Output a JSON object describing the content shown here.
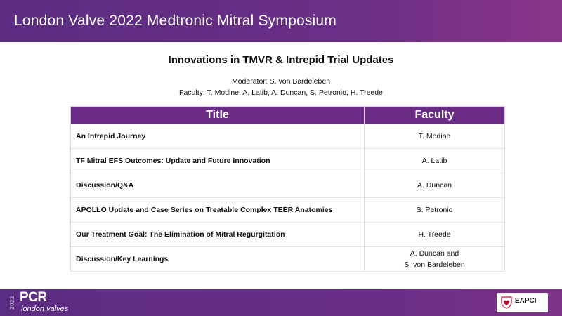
{
  "header": {
    "title": "London Valve 2022 Medtronic Mitral Symposium"
  },
  "session": {
    "title": "Innovations in TMVR & Intrepid Trial Updates",
    "moderator": "Moderator: S. von Bardeleben",
    "faculty": "Faculty: T. Modine, A. Latib, A. Duncan, S. Petronio, H. Treede"
  },
  "table": {
    "headers": {
      "title": "Title",
      "faculty": "Faculty"
    },
    "rows": [
      {
        "title": "An Intrepid Journey",
        "faculty": [
          "T. Modine"
        ]
      },
      {
        "title": "TF Mitral EFS Outcomes:  Update and Future Innovation",
        "faculty": [
          "A. Latib"
        ]
      },
      {
        "title": "Discussion/Q&A",
        "faculty": [
          "A. Duncan"
        ]
      },
      {
        "title": "APOLLO Update and Case Series on Treatable Complex TEER Anatomies",
        "faculty": [
          "S. Petronio"
        ]
      },
      {
        "title": "Our Treatment Goal:  The Elimination of Mitral Regurgitation",
        "faculty": [
          "H. Treede"
        ]
      },
      {
        "title": "Discussion/Key  Learnings",
        "faculty": [
          "A. Duncan and",
          "S. von Bardeleben"
        ]
      }
    ]
  },
  "footer": {
    "year": "2022",
    "brand": "PCR",
    "brand_sub": "london valves",
    "partner": "EAPCI"
  },
  "colors": {
    "purple": "#6a2c84",
    "heart": "#c8102e"
  }
}
